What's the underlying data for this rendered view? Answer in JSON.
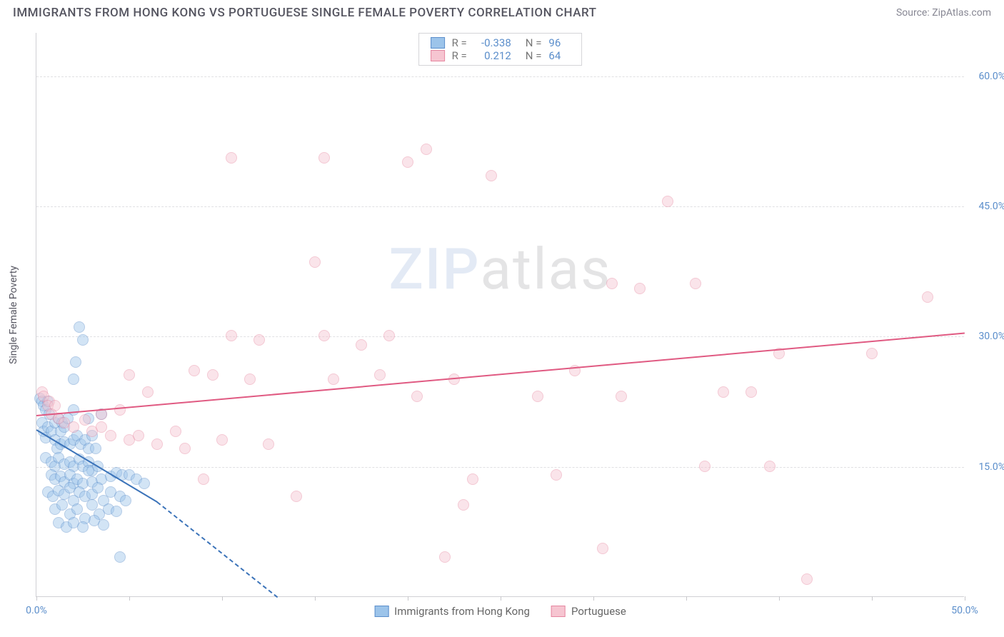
{
  "header": {
    "title": "IMMIGRANTS FROM HONG KONG VS PORTUGUESE SINGLE FEMALE POVERTY CORRELATION CHART",
    "source": "Source: ZipAtlas.com"
  },
  "watermark": {
    "part1": "ZIP",
    "part2": "atlas"
  },
  "chart": {
    "type": "scatter",
    "ylabel": "Single Female Poverty",
    "xlim": [
      0,
      50
    ],
    "ylim": [
      0,
      65
    ],
    "x_ticks_at": [
      0,
      5,
      10,
      15,
      20,
      25,
      30,
      35,
      40,
      45,
      50
    ],
    "x_tick_labels": {
      "0": "0.0%",
      "50": "50.0%"
    },
    "y_gridlines": [
      15,
      30,
      45,
      60
    ],
    "y_tick_labels": {
      "15": "15.0%",
      "30": "30.0%",
      "45": "45.0%",
      "60": "60.0%"
    },
    "background_color": "#ffffff",
    "grid_color": "#e0e0e3",
    "axis_color": "#d0d0d5",
    "label_color": "#5b8ecb",
    "marker_radius": 8,
    "marker_opacity": 0.45,
    "series": [
      {
        "name": "Immigrants from Hong Kong",
        "fill": "#9cc4ea",
        "stroke": "#5b8ecb",
        "R": "-0.338",
        "N": "96",
        "trend": {
          "x1": 0,
          "y1": 19.3,
          "x2": 6.5,
          "y2": 11.0,
          "color": "#3b73b9"
        },
        "trend_ext": {
          "x1": 6.5,
          "y1": 11.0,
          "x2": 13.0,
          "y2": 0.0,
          "color": "#3b73b9"
        },
        "points": [
          [
            0.2,
            22.8
          ],
          [
            0.3,
            22.5
          ],
          [
            0.4,
            22.0
          ],
          [
            0.6,
            22.5
          ],
          [
            0.5,
            21.5
          ],
          [
            0.7,
            21.0
          ],
          [
            0.3,
            20.0
          ],
          [
            0.4,
            19.0
          ],
          [
            0.5,
            18.3
          ],
          [
            0.6,
            19.5
          ],
          [
            0.8,
            19.0
          ],
          [
            1.0,
            20.0
          ],
          [
            1.2,
            20.5
          ],
          [
            1.4,
            20.0
          ],
          [
            1.3,
            19.0
          ],
          [
            1.5,
            19.5
          ],
          [
            1.7,
            20.5
          ],
          [
            2.0,
            21.5
          ],
          [
            1.0,
            18.0
          ],
          [
            1.1,
            17.0
          ],
          [
            1.3,
            17.5
          ],
          [
            1.5,
            17.8
          ],
          [
            1.8,
            17.5
          ],
          [
            2.0,
            18.0
          ],
          [
            2.2,
            18.5
          ],
          [
            2.4,
            17.5
          ],
          [
            2.6,
            18.0
          ],
          [
            2.8,
            17.0
          ],
          [
            3.0,
            18.5
          ],
          [
            3.2,
            17.0
          ],
          [
            0.5,
            16.0
          ],
          [
            0.8,
            15.5
          ],
          [
            1.0,
            15.0
          ],
          [
            1.2,
            16.0
          ],
          [
            1.5,
            15.2
          ],
          [
            1.8,
            15.5
          ],
          [
            2.0,
            15.0
          ],
          [
            2.3,
            15.8
          ],
          [
            2.5,
            15.0
          ],
          [
            2.8,
            15.5
          ],
          [
            3.0,
            14.5
          ],
          [
            3.3,
            15.0
          ],
          [
            0.8,
            14.0
          ],
          [
            1.0,
            13.5
          ],
          [
            1.3,
            13.8
          ],
          [
            1.5,
            13.2
          ],
          [
            1.8,
            14.0
          ],
          [
            2.0,
            13.0
          ],
          [
            2.2,
            13.5
          ],
          [
            2.5,
            13.0
          ],
          [
            2.8,
            14.5
          ],
          [
            3.0,
            13.2
          ],
          [
            3.5,
            13.5
          ],
          [
            4.0,
            13.8
          ],
          [
            4.3,
            14.2
          ],
          [
            4.6,
            14.0
          ],
          [
            5.0,
            14.0
          ],
          [
            5.4,
            13.5
          ],
          [
            5.8,
            13.0
          ],
          [
            0.6,
            12.0
          ],
          [
            0.9,
            11.5
          ],
          [
            1.2,
            12.2
          ],
          [
            1.5,
            11.8
          ],
          [
            1.8,
            12.5
          ],
          [
            2.0,
            11.0
          ],
          [
            2.3,
            12.0
          ],
          [
            2.6,
            11.5
          ],
          [
            3.0,
            11.8
          ],
          [
            3.3,
            12.5
          ],
          [
            3.6,
            11.0
          ],
          [
            4.0,
            12.0
          ],
          [
            4.5,
            11.5
          ],
          [
            4.8,
            11.0
          ],
          [
            1.0,
            10.0
          ],
          [
            1.4,
            10.5
          ],
          [
            1.8,
            9.5
          ],
          [
            2.2,
            10.0
          ],
          [
            2.6,
            9.0
          ],
          [
            3.0,
            10.5
          ],
          [
            3.4,
            9.5
          ],
          [
            3.9,
            10.0
          ],
          [
            4.3,
            9.8
          ],
          [
            1.2,
            8.5
          ],
          [
            1.6,
            8.0
          ],
          [
            2.0,
            8.5
          ],
          [
            2.5,
            8.0
          ],
          [
            3.1,
            8.7
          ],
          [
            3.6,
            8.2
          ],
          [
            2.0,
            25.0
          ],
          [
            2.1,
            27.0
          ],
          [
            2.3,
            31.0
          ],
          [
            2.5,
            29.5
          ],
          [
            2.8,
            20.5
          ],
          [
            3.5,
            21.0
          ],
          [
            4.5,
            4.5
          ]
        ]
      },
      {
        "name": "Portuguese",
        "fill": "#f6c5d1",
        "stroke": "#e687a0",
        "R": "0.212",
        "N": "64",
        "trend": {
          "x1": 0,
          "y1": 21.0,
          "x2": 50,
          "y2": 30.5,
          "color": "#e05a82"
        },
        "points": [
          [
            0.3,
            23.5
          ],
          [
            0.4,
            23.0
          ],
          [
            0.7,
            22.5
          ],
          [
            0.6,
            22.0
          ],
          [
            1.0,
            22.0
          ],
          [
            0.8,
            21.0
          ],
          [
            1.2,
            20.5
          ],
          [
            1.5,
            20.0
          ],
          [
            2.0,
            19.5
          ],
          [
            2.6,
            20.3
          ],
          [
            3.0,
            19.0
          ],
          [
            3.5,
            19.5
          ],
          [
            4.0,
            18.5
          ],
          [
            5.0,
            18.0
          ],
          [
            5.5,
            18.5
          ],
          [
            6.5,
            17.5
          ],
          [
            3.5,
            21.0
          ],
          [
            4.5,
            21.5
          ],
          [
            5.0,
            25.5
          ],
          [
            6.0,
            23.5
          ],
          [
            7.5,
            19.0
          ],
          [
            8.0,
            17.0
          ],
          [
            8.5,
            26.0
          ],
          [
            9.0,
            13.5
          ],
          [
            9.5,
            25.5
          ],
          [
            10.0,
            18.0
          ],
          [
            10.5,
            30.0
          ],
          [
            11.5,
            25.0
          ],
          [
            12.5,
            17.5
          ],
          [
            12.0,
            29.5
          ],
          [
            14.0,
            11.5
          ],
          [
            15.0,
            38.5
          ],
          [
            15.5,
            30.0
          ],
          [
            16.0,
            25.0
          ],
          [
            10.5,
            50.5
          ],
          [
            15.5,
            50.5
          ],
          [
            17.5,
            29.0
          ],
          [
            18.5,
            25.5
          ],
          [
            19.0,
            30.0
          ],
          [
            20.0,
            50.0
          ],
          [
            20.5,
            23.0
          ],
          [
            21.0,
            51.5
          ],
          [
            22.0,
            4.5
          ],
          [
            22.5,
            25.0
          ],
          [
            23.0,
            10.5
          ],
          [
            23.5,
            13.5
          ],
          [
            24.5,
            48.5
          ],
          [
            27.0,
            23.0
          ],
          [
            28.0,
            14.0
          ],
          [
            29.0,
            26.0
          ],
          [
            30.5,
            5.5
          ],
          [
            31.0,
            36.0
          ],
          [
            31.5,
            23.0
          ],
          [
            32.5,
            35.5
          ],
          [
            34.0,
            45.5
          ],
          [
            35.5,
            36.0
          ],
          [
            36.0,
            15.0
          ],
          [
            37.0,
            23.5
          ],
          [
            38.5,
            23.5
          ],
          [
            39.5,
            15.0
          ],
          [
            40.0,
            28.0
          ],
          [
            41.5,
            2.0
          ],
          [
            45.0,
            28.0
          ],
          [
            48.0,
            34.5
          ]
        ]
      }
    ]
  },
  "bottom_legend": [
    {
      "label": "Immigrants from Hong Kong",
      "fill": "#9cc4ea",
      "stroke": "#5b8ecb"
    },
    {
      "label": "Portuguese",
      "fill": "#f6c5d1",
      "stroke": "#e687a0"
    }
  ]
}
